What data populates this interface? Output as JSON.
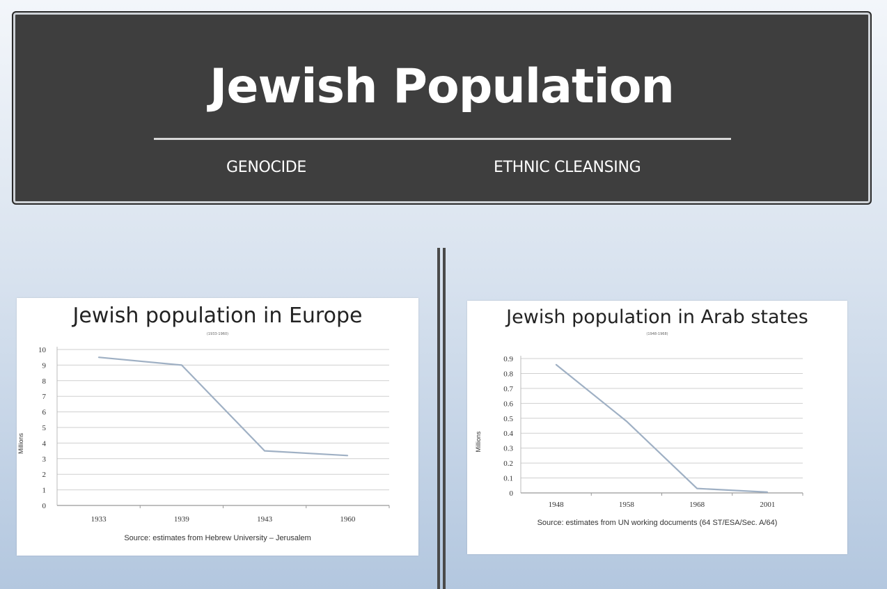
{
  "header": {
    "title": "Jewish Population",
    "subtitles": [
      "GENOCIDE",
      "ETHNIC CLEANSING"
    ]
  },
  "colors": {
    "header_bg": "#3e3e3e",
    "line": "#9fb0c4",
    "grid": "#cfcfcf",
    "text": "#333333"
  },
  "chart_data": [
    {
      "type": "line",
      "title": "Jewish population in Europe",
      "subtitle": "(1933-1960)",
      "ylabel": "Millions",
      "categories": [
        "1933",
        "1939",
        "1943",
        "1960"
      ],
      "values": [
        9.5,
        9.0,
        3.5,
        3.2
      ],
      "ylim": [
        0,
        10
      ],
      "yticks": [
        0,
        1,
        2,
        3,
        4,
        5,
        6,
        7,
        8,
        9,
        10
      ],
      "grid": true,
      "source": "Source:  estimates from Hebrew University – Jerusalem"
    },
    {
      "type": "line",
      "title": "Jewish population in Arab states",
      "subtitle": "(1948-1968)",
      "ylabel": "Millions",
      "categories": [
        "1948",
        "1958",
        "1968",
        "2001"
      ],
      "values": [
        0.86,
        0.48,
        0.03,
        0.005
      ],
      "ylim": [
        0,
        0.9
      ],
      "yticks": [
        "0",
        "0.1",
        "0.2",
        "0.3",
        "0.4",
        "0.5",
        "0.6",
        "0.7",
        "0.8",
        "0.9"
      ],
      "grid": true,
      "source": "Source: estimates from UN working documents (64 ST/ESA/Sec. A/64)"
    }
  ]
}
